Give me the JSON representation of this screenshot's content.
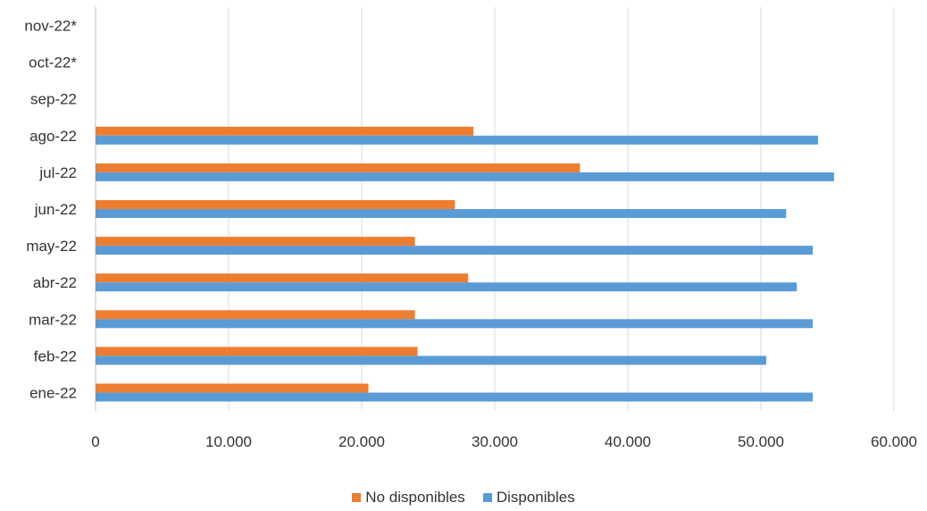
{
  "chart_data": {
    "type": "bar",
    "orientation": "horizontal",
    "categories": [
      "ene-22",
      "feb-22",
      "mar-22",
      "abr-22",
      "may-22",
      "jun-22",
      "jul-22",
      "ago-22",
      "sep-22",
      "oct-22*",
      "nov-22*"
    ],
    "series": [
      {
        "name": "No disponibles",
        "color": "#ED7D31",
        "values": [
          20500,
          24200,
          24000,
          28000,
          24000,
          27000,
          36400,
          28400,
          null,
          null,
          null
        ]
      },
      {
        "name": "Disponibles",
        "color": "#5B9BD5",
        "values": [
          53900,
          50400,
          53900,
          52700,
          53900,
          51900,
          55500,
          54300,
          null,
          null,
          null
        ]
      }
    ],
    "xlim": [
      0,
      60000
    ],
    "xticks": [
      "0",
      "10.000",
      "20.000",
      "30.000",
      "40.000",
      "50.000",
      "60.000"
    ],
    "xtick_values": [
      0,
      10000,
      20000,
      30000,
      40000,
      50000,
      60000
    ],
    "grid": true,
    "grid_color": "#D9D9D9",
    "legend_position": "bottom"
  }
}
